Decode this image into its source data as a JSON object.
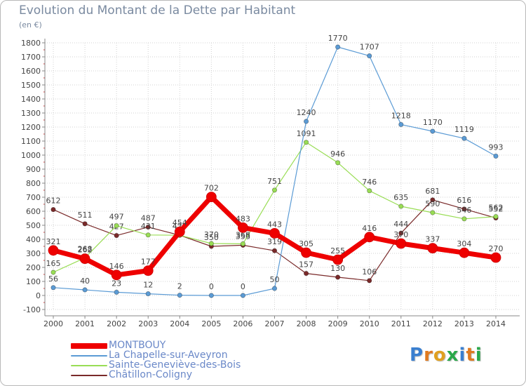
{
  "chart_data": {
    "type": "line",
    "title": "Evolution du Montant de la Dette par Habitant",
    "subtitle": "(en €)",
    "x": [
      "2000",
      "2001",
      "2002",
      "2003",
      "2004",
      "2005",
      "2006",
      "2007",
      "2008",
      "2009",
      "2010",
      "2011",
      "2012",
      "2013",
      "2014"
    ],
    "ylim": [
      -100,
      1800
    ],
    "yticks": [
      -100,
      0,
      100,
      200,
      300,
      400,
      500,
      600,
      700,
      800,
      900,
      1000,
      1100,
      1200,
      1300,
      1400,
      1500,
      1600,
      1700,
      1800
    ],
    "grid": true,
    "legend_position": "bottom-left",
    "series": [
      {
        "name": "MONTBOUY",
        "color": "#ee0000",
        "values": [
          321,
          262,
          146,
          177,
          454,
          702,
          483,
          443,
          305,
          255,
          416,
          370,
          337,
          304,
          270
        ]
      },
      {
        "name": "La Chapelle-sur-Aveyron",
        "color": "#5b9bd5",
        "values": [
          56,
          40,
          23,
          12,
          2,
          0,
          0,
          50,
          1240,
          1770,
          1707,
          1218,
          1170,
          1119,
          993
        ]
      },
      {
        "name": "Sainte-Geneviève-des-Bois",
        "color": "#99dd55",
        "values": [
          165,
          268,
          497,
          431,
          429,
          370,
          368,
          751,
          1091,
          946,
          746,
          635,
          590,
          546,
          562
        ]
      },
      {
        "name": "Châtillon-Coligny",
        "color": "#7a2a2a",
        "values": [
          612,
          511,
          427,
          487,
          429,
          350,
          358,
          319,
          157,
          130,
          106,
          444,
          681,
          616,
          552
        ]
      }
    ]
  },
  "logo": {
    "text": "Proxiti"
  }
}
